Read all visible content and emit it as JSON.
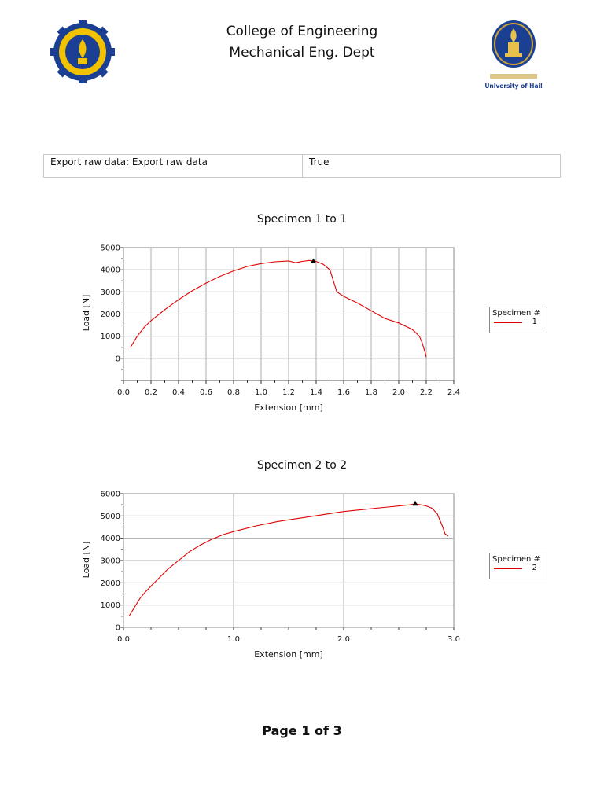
{
  "header": {
    "line1": "College of Engineering",
    "line2": "Mechanical Eng. Dept",
    "right_logo_text": "University of Hail"
  },
  "info_table": {
    "key": "Export raw data: Export raw data",
    "value": "True"
  },
  "chart_data": [
    {
      "type": "line",
      "title": "Specimen 1 to 1",
      "xlabel": "Extension [mm]",
      "ylabel": "Load [N]",
      "xlim": [
        0,
        2.4
      ],
      "ylim": [
        -1000,
        5000
      ],
      "xticks": [
        0,
        0.2,
        0.4,
        0.6,
        0.8,
        1.0,
        1.2,
        1.4,
        1.6,
        1.8,
        2.0,
        2.2,
        2.4
      ],
      "xtick_labels": [
        "0.0",
        "0.2",
        "0.4",
        "0.6",
        "0.8",
        "1.0",
        "1.2",
        "1.4",
        "1.6",
        "1.8",
        "2.0",
        "2.2",
        "2.4"
      ],
      "yticks": [
        0,
        1000,
        2000,
        3000,
        4000,
        5000
      ],
      "ytick_labels": [
        "0",
        "1000",
        "2000",
        "3000",
        "4000",
        "5000"
      ],
      "grid": true,
      "legend": {
        "title": "Specimen #",
        "placement": "right"
      },
      "series": [
        {
          "name": "1",
          "color": "#e00000",
          "x": [
            0.05,
            0.1,
            0.15,
            0.2,
            0.3,
            0.4,
            0.5,
            0.6,
            0.7,
            0.8,
            0.9,
            1.0,
            1.1,
            1.2,
            1.25,
            1.3,
            1.35,
            1.4,
            1.45,
            1.5,
            1.52,
            1.55,
            1.6,
            1.7,
            1.8,
            1.9,
            2.0,
            2.05,
            2.1,
            2.15,
            2.17,
            2.19,
            2.2
          ],
          "y": [
            500,
            1000,
            1400,
            1700,
            2200,
            2650,
            3050,
            3400,
            3700,
            3950,
            4150,
            4280,
            4360,
            4400,
            4320,
            4380,
            4420,
            4380,
            4250,
            4000,
            3600,
            3000,
            2800,
            2500,
            2150,
            1800,
            1600,
            1450,
            1300,
            1000,
            700,
            300,
            50
          ]
        }
      ],
      "annotations": [
        {
          "type": "marker",
          "shape": "triangle",
          "x": 1.38,
          "y": 4380,
          "label": "max load"
        }
      ]
    },
    {
      "type": "line",
      "title": "Specimen 2 to 2",
      "xlabel": "Extension [mm]",
      "ylabel": "Load [N]",
      "xlim": [
        0,
        3.0
      ],
      "ylim": [
        0,
        6000
      ],
      "xticks": [
        0,
        1.0,
        2.0,
        3.0
      ],
      "xtick_labels": [
        "0.0",
        "1.0",
        "2.0",
        "3.0"
      ],
      "yticks": [
        0,
        1000,
        2000,
        3000,
        4000,
        5000,
        6000
      ],
      "ytick_labels": [
        "0",
        "1000",
        "2000",
        "3000",
        "4000",
        "5000",
        "6000"
      ],
      "grid": true,
      "legend": {
        "title": "Specimen #",
        "placement": "right"
      },
      "series": [
        {
          "name": "2",
          "color": "#e00000",
          "x": [
            0.05,
            0.1,
            0.15,
            0.2,
            0.3,
            0.4,
            0.5,
            0.6,
            0.7,
            0.8,
            0.9,
            1.0,
            1.2,
            1.4,
            1.6,
            1.8,
            2.0,
            2.2,
            2.4,
            2.6,
            2.65,
            2.7,
            2.75,
            2.8,
            2.85,
            2.9,
            2.92,
            2.95
          ],
          "y": [
            500,
            900,
            1300,
            1600,
            2100,
            2600,
            3000,
            3400,
            3700,
            3950,
            4150,
            4300,
            4550,
            4750,
            4900,
            5050,
            5200,
            5300,
            5400,
            5500,
            5550,
            5500,
            5450,
            5350,
            5100,
            4500,
            4200,
            4100
          ]
        }
      ],
      "annotations": [
        {
          "type": "marker",
          "shape": "triangle",
          "x": 2.65,
          "y": 5550,
          "label": "max load"
        }
      ]
    }
  ],
  "footer": {
    "page_label": "Page 1 of 3"
  }
}
